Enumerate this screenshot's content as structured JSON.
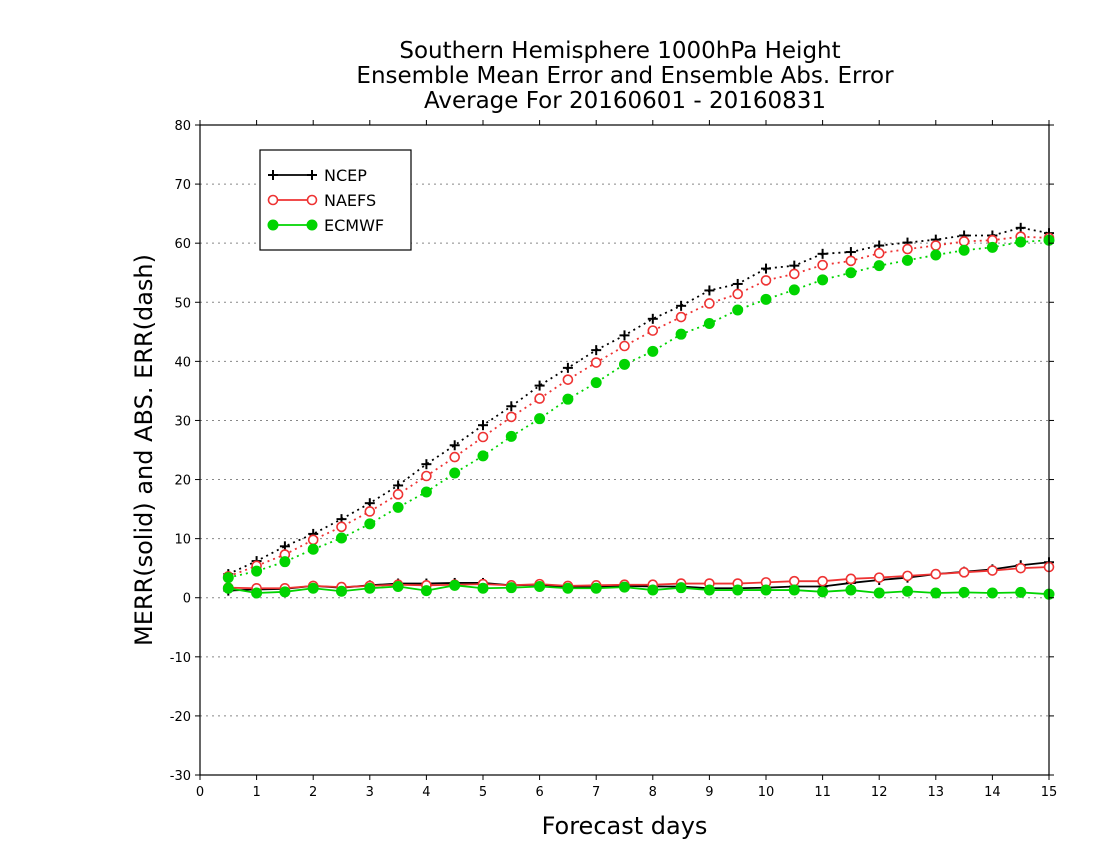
{
  "chart_data": {
    "type": "line",
    "title": [
      "Southern Hemisphere 1000hPa Height",
      "Ensemble Mean Error and Ensemble Abs. Error",
      "Average For 20160601 - 20160831"
    ],
    "xlabel": "Forecast days",
    "ylabel": "MERR(solid) and ABS. ERR(dash)",
    "xlim": [
      0,
      15
    ],
    "ylim": [
      -30,
      80
    ],
    "xticks": [
      "0",
      "1",
      "2",
      "3",
      "4",
      "5",
      "6",
      "7",
      "8",
      "9",
      "10",
      "11",
      "12",
      "13",
      "14",
      "15"
    ],
    "yticks": [
      "-30",
      "-20",
      "-10",
      "0",
      "10",
      "20",
      "30",
      "40",
      "50",
      "60",
      "70",
      "80"
    ],
    "grid": "horizontal dotted",
    "legend_position": "top-left",
    "x": [
      0.5,
      1,
      1.5,
      2,
      2.5,
      3,
      3.5,
      4,
      4.5,
      5,
      5.5,
      6,
      6.5,
      7,
      7.5,
      8,
      8.5,
      9,
      9.5,
      10,
      10.5,
      11,
      11.5,
      12,
      12.5,
      13,
      13.5,
      14,
      14.5,
      15
    ],
    "series": [
      {
        "name": "NCEP",
        "color": "#000000",
        "marker": "plus",
        "abs_err": [
          4,
          6.2,
          8.7,
          10.8,
          13.3,
          16,
          19,
          22.6,
          25.8,
          29.2,
          32.4,
          35.9,
          38.9,
          41.9,
          44.4,
          47.2,
          49.4,
          52,
          53.1,
          55.7,
          56.2,
          58.2,
          58.5,
          59.6,
          60.1,
          60.6,
          61.3,
          61.3,
          62.6,
          61.7
        ],
        "mean_err": [
          1.2,
          1.4,
          1.5,
          2,
          1.7,
          2.1,
          2.4,
          2.4,
          2.5,
          2.5,
          2.1,
          2.2,
          1.8,
          1.8,
          2,
          1.9,
          1.9,
          1.6,
          1.6,
          1.7,
          1.9,
          1.9,
          2.5,
          3,
          3.4,
          4,
          4.4,
          4.8,
          5.5,
          6
        ]
      },
      {
        "name": "NAEFS",
        "color": "#ee3333",
        "marker": "open-circle",
        "abs_err": [
          3.6,
          5.4,
          7.3,
          9.8,
          12,
          14.6,
          17.5,
          20.6,
          23.8,
          27.2,
          30.6,
          33.7,
          36.9,
          39.8,
          42.6,
          45.2,
          47.5,
          49.8,
          51.4,
          53.7,
          54.8,
          56.3,
          57,
          58.3,
          59,
          59.6,
          60.3,
          60.5,
          61.1,
          60.9
        ],
        "mean_err": [
          1.7,
          1.6,
          1.6,
          2,
          1.8,
          2,
          2.2,
          2.1,
          2.2,
          2.3,
          2.1,
          2.3,
          2,
          2.1,
          2.2,
          2.2,
          2.4,
          2.4,
          2.4,
          2.6,
          2.8,
          2.8,
          3.2,
          3.4,
          3.7,
          4,
          4.3,
          4.6,
          5,
          5.2
        ]
      },
      {
        "name": "ECMWF",
        "color": "#00d400",
        "marker": "filled-circle",
        "abs_err": [
          3.4,
          4.5,
          6.1,
          8.2,
          10.1,
          12.5,
          15.3,
          17.9,
          21.1,
          24,
          27.3,
          30.3,
          33.6,
          36.4,
          39.5,
          41.7,
          44.6,
          46.4,
          48.7,
          50.5,
          52.1,
          53.8,
          55,
          56.2,
          57.1,
          58,
          58.8,
          59.3,
          60.2,
          60.5
        ],
        "mean_err": [
          1.6,
          0.8,
          1,
          1.6,
          1.1,
          1.6,
          1.9,
          1.2,
          2.1,
          1.6,
          1.7,
          1.9,
          1.6,
          1.6,
          1.8,
          1.3,
          1.7,
          1.3,
          1.3,
          1.3,
          1.3,
          1,
          1.3,
          0.8,
          1.1,
          0.8,
          0.9,
          0.8,
          0.9,
          0.6
        ]
      }
    ]
  }
}
